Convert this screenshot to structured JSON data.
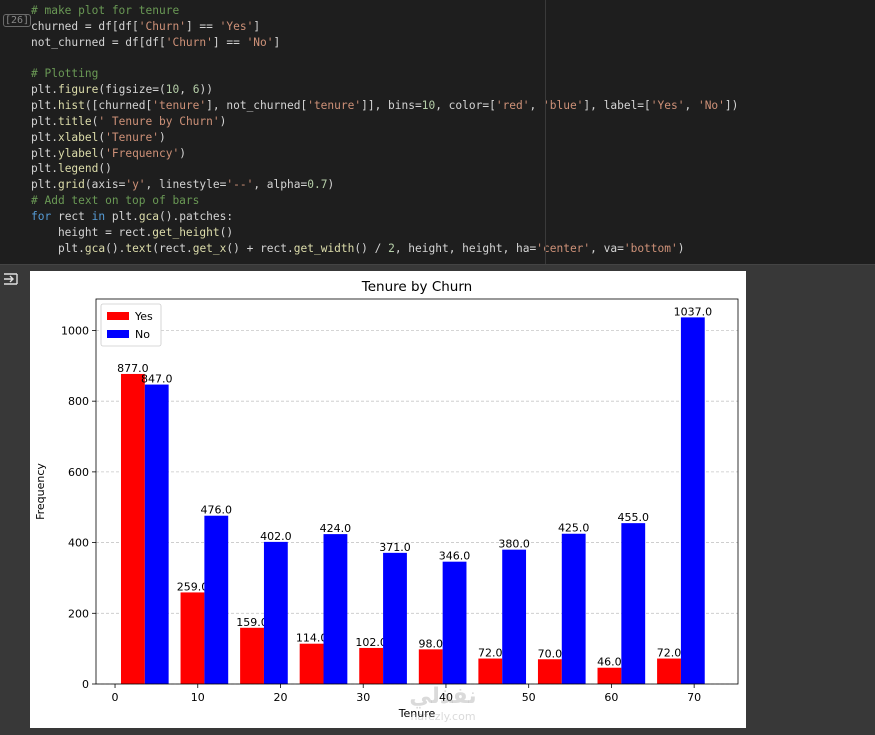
{
  "cell": {
    "execution_count": "[26]",
    "lines": [
      [
        {
          "t": "# make plot for tenure",
          "c": "c-comment"
        }
      ],
      [
        {
          "t": "churned = df[df[",
          "c": "c-var"
        },
        {
          "t": "'Churn'",
          "c": "c-str"
        },
        {
          "t": "] == ",
          "c": "c-var"
        },
        {
          "t": "'Yes'",
          "c": "c-str"
        },
        {
          "t": "]",
          "c": "c-var"
        }
      ],
      [
        {
          "t": "not_churned = df[df[",
          "c": "c-var"
        },
        {
          "t": "'Churn'",
          "c": "c-str"
        },
        {
          "t": "] == ",
          "c": "c-var"
        },
        {
          "t": "'No'",
          "c": "c-str"
        },
        {
          "t": "]",
          "c": "c-var"
        }
      ],
      [
        {
          "t": "",
          "c": "c-var"
        }
      ],
      [
        {
          "t": "# Plotting",
          "c": "c-comment"
        }
      ],
      [
        {
          "t": "plt.",
          "c": "c-var"
        },
        {
          "t": "figure",
          "c": "c-fn"
        },
        {
          "t": "(figsize=(",
          "c": "c-var"
        },
        {
          "t": "10",
          "c": "c-num"
        },
        {
          "t": ", ",
          "c": "c-var"
        },
        {
          "t": "6",
          "c": "c-num"
        },
        {
          "t": "))",
          "c": "c-var"
        }
      ],
      [
        {
          "t": "plt.",
          "c": "c-var"
        },
        {
          "t": "hist",
          "c": "c-fn"
        },
        {
          "t": "([churned[",
          "c": "c-var"
        },
        {
          "t": "'tenure'",
          "c": "c-str"
        },
        {
          "t": "], not_churned[",
          "c": "c-var"
        },
        {
          "t": "'tenure'",
          "c": "c-str"
        },
        {
          "t": "]], bins=",
          "c": "c-var"
        },
        {
          "t": "10",
          "c": "c-num"
        },
        {
          "t": ", color=[",
          "c": "c-var"
        },
        {
          "t": "'red'",
          "c": "c-str"
        },
        {
          "t": ", ",
          "c": "c-var"
        },
        {
          "t": "'blue'",
          "c": "c-str"
        },
        {
          "t": "], label=[",
          "c": "c-var"
        },
        {
          "t": "'Yes'",
          "c": "c-str"
        },
        {
          "t": ", ",
          "c": "c-var"
        },
        {
          "t": "'No'",
          "c": "c-str"
        },
        {
          "t": "])",
          "c": "c-var"
        }
      ],
      [
        {
          "t": "plt.",
          "c": "c-var"
        },
        {
          "t": "title",
          "c": "c-fn"
        },
        {
          "t": "(",
          "c": "c-var"
        },
        {
          "t": "' Tenure by Churn'",
          "c": "c-str"
        },
        {
          "t": ")",
          "c": "c-var"
        }
      ],
      [
        {
          "t": "plt.",
          "c": "c-var"
        },
        {
          "t": "xlabel",
          "c": "c-fn"
        },
        {
          "t": "(",
          "c": "c-var"
        },
        {
          "t": "'Tenure'",
          "c": "c-str"
        },
        {
          "t": ")",
          "c": "c-var"
        }
      ],
      [
        {
          "t": "plt.",
          "c": "c-var"
        },
        {
          "t": "ylabel",
          "c": "c-fn"
        },
        {
          "t": "(",
          "c": "c-var"
        },
        {
          "t": "'Frequency'",
          "c": "c-str"
        },
        {
          "t": ")",
          "c": "c-var"
        }
      ],
      [
        {
          "t": "plt.",
          "c": "c-var"
        },
        {
          "t": "legend",
          "c": "c-fn"
        },
        {
          "t": "()",
          "c": "c-var"
        }
      ],
      [
        {
          "t": "plt.",
          "c": "c-var"
        },
        {
          "t": "grid",
          "c": "c-fn"
        },
        {
          "t": "(axis=",
          "c": "c-var"
        },
        {
          "t": "'y'",
          "c": "c-str"
        },
        {
          "t": ", linestyle=",
          "c": "c-var"
        },
        {
          "t": "'--'",
          "c": "c-str"
        },
        {
          "t": ", alpha=",
          "c": "c-var"
        },
        {
          "t": "0.7",
          "c": "c-num"
        },
        {
          "t": ")",
          "c": "c-var"
        }
      ],
      [
        {
          "t": "# Add text on top of bars",
          "c": "c-comment"
        }
      ],
      [
        {
          "t": "for",
          "c": "c-kw"
        },
        {
          "t": " rect ",
          "c": "c-var"
        },
        {
          "t": "in",
          "c": "c-kw"
        },
        {
          "t": " plt.",
          "c": "c-var"
        },
        {
          "t": "gca",
          "c": "c-fn"
        },
        {
          "t": "().patches:",
          "c": "c-var"
        }
      ],
      [
        {
          "t": "    height = rect.",
          "c": "c-var"
        },
        {
          "t": "get_height",
          "c": "c-fn"
        },
        {
          "t": "()",
          "c": "c-var"
        }
      ],
      [
        {
          "t": "    plt.",
          "c": "c-var"
        },
        {
          "t": "gca",
          "c": "c-fn"
        },
        {
          "t": "().",
          "c": "c-var"
        },
        {
          "t": "text",
          "c": "c-fn"
        },
        {
          "t": "(rect.",
          "c": "c-var"
        },
        {
          "t": "get_x",
          "c": "c-fn"
        },
        {
          "t": "() + rect.",
          "c": "c-var"
        },
        {
          "t": "get_width",
          "c": "c-fn"
        },
        {
          "t": "() / ",
          "c": "c-var"
        },
        {
          "t": "2",
          "c": "c-num"
        },
        {
          "t": ", height, height, ha=",
          "c": "c-var"
        },
        {
          "t": "'center'",
          "c": "c-str"
        },
        {
          "t": ", va=",
          "c": "c-var"
        },
        {
          "t": "'bottom'",
          "c": "c-str"
        },
        {
          "t": ")",
          "c": "c-var"
        }
      ]
    ]
  },
  "output": {
    "toggle_icon": "output-toggle-icon"
  },
  "chart_data": {
    "type": "bar",
    "title": "Tenure by Churn",
    "xlabel": "Tenure",
    "ylabel": "Frequency",
    "xlim": [
      -2.3,
      75.3
    ],
    "ylim": [
      0,
      1089
    ],
    "xticks": [
      "0",
      "10",
      "20",
      "30",
      "40",
      "50",
      "60",
      "70"
    ],
    "yticks": [
      "0",
      "200",
      "400",
      "600",
      "800",
      "1000"
    ],
    "grid": "y, dashed",
    "legend": "top-left",
    "bin_edges": [
      0,
      7.2,
      14.4,
      21.6,
      28.8,
      36,
      43.2,
      50.4,
      57.6,
      64.8,
      72
    ],
    "series": [
      {
        "name": "Yes",
        "color": "#ff0000",
        "values": [
          877,
          259,
          159,
          114,
          102,
          98,
          72,
          70,
          46,
          72
        ],
        "labels": [
          "877.0",
          "259.0",
          "159.0",
          "114.0",
          "102.0",
          "98.0",
          "72.0",
          "70.0",
          "46.0",
          "72.0"
        ]
      },
      {
        "name": "No",
        "color": "#0000ff",
        "values": [
          847,
          476,
          402,
          424,
          371,
          346,
          380,
          425,
          455,
          1037
        ],
        "labels": [
          "847.0",
          "476.0",
          "402.0",
          "424.0",
          "371.0",
          "346.0",
          "380.0",
          "425.0",
          "455.0",
          "1037.0"
        ]
      }
    ]
  },
  "watermark": {
    "top": "نفذلي",
    "bottom": "nafezly.com"
  }
}
